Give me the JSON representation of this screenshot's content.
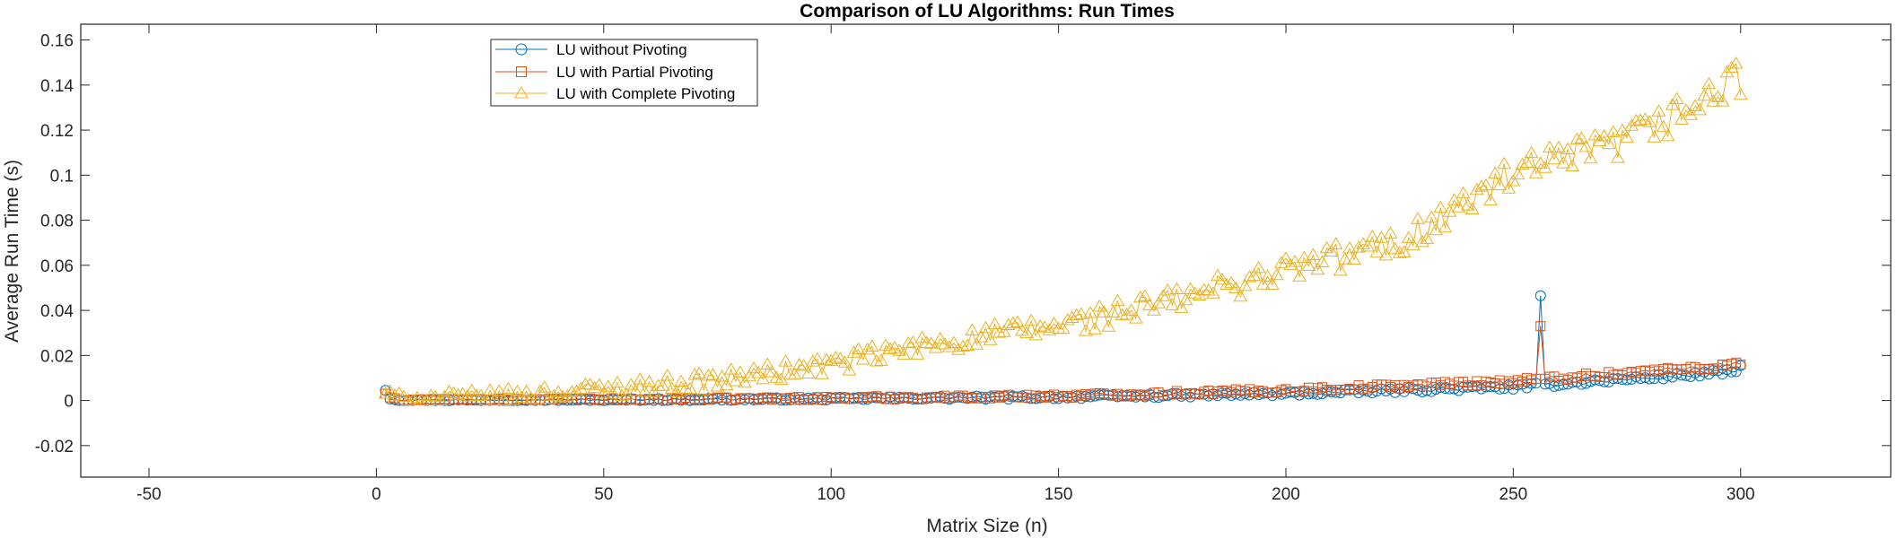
{
  "chart_data": {
    "type": "line",
    "title": "Comparison of LU Algorithms: Run Times",
    "xlabel": "Matrix Size (n)",
    "ylabel": "Average Run Time (s)",
    "xlim": [
      -65,
      333
    ],
    "ylim": [
      -0.034,
      0.167
    ],
    "xticks": [
      -50,
      0,
      50,
      100,
      150,
      200,
      250,
      300
    ],
    "xtick_labels": [
      "-50",
      "0",
      "50",
      "100",
      "150",
      "200",
      "250",
      "300"
    ],
    "yticks": [
      -0.02,
      0,
      0.02,
      0.04,
      0.06,
      0.08,
      0.1,
      0.12,
      0.14,
      0.16
    ],
    "ytick_labels": [
      "-0.02",
      "0",
      "0.02",
      "0.04",
      "0.06",
      "0.08",
      "0.1",
      "0.12",
      "0.14",
      "0.16"
    ],
    "grid": false,
    "legend_position": "top-left",
    "x": {
      "start": 2,
      "end": 300,
      "step": 1
    },
    "series": [
      {
        "name": "LU without Pivoting",
        "color": "#0072BD",
        "marker": "circle",
        "curve_knots": [
          [
            2,
            0.0045
          ],
          [
            3,
            0.001
          ],
          [
            5,
            0.0002
          ],
          [
            50,
            0.0003
          ],
          [
            100,
            0.0008
          ],
          [
            150,
            0.0015
          ],
          [
            200,
            0.003
          ],
          [
            250,
            0.006
          ],
          [
            300,
            0.013
          ]
        ],
        "noise": 0.0012,
        "overrides": [
          [
            2,
            0.0045
          ],
          [
            256,
            0.0465
          ],
          [
            300,
            0.0155
          ]
        ]
      },
      {
        "name": "LU with Partial Pivoting",
        "color": "#D95319",
        "marker": "square",
        "curve_knots": [
          [
            2,
            0.003
          ],
          [
            3,
            0.001
          ],
          [
            5,
            0.0003
          ],
          [
            50,
            0.0004
          ],
          [
            100,
            0.001
          ],
          [
            150,
            0.002
          ],
          [
            200,
            0.0045
          ],
          [
            250,
            0.0085
          ],
          [
            300,
            0.016
          ]
        ],
        "noise": 0.0014,
        "overrides": [
          [
            2,
            0.003
          ],
          [
            256,
            0.033
          ],
          [
            300,
            0.016
          ]
        ]
      },
      {
        "name": "LU with Complete Pivoting",
        "color": "#EDB120",
        "marker": "triangle",
        "curve_knots": [
          [
            2,
            0.003
          ],
          [
            5,
            0.0008
          ],
          [
            25,
            0.0015
          ],
          [
            50,
            0.005
          ],
          [
            75,
            0.009
          ],
          [
            100,
            0.016
          ],
          [
            125,
            0.026
          ],
          [
            150,
            0.033
          ],
          [
            175,
            0.044
          ],
          [
            200,
            0.058
          ],
          [
            225,
            0.07
          ],
          [
            250,
            0.1
          ],
          [
            275,
            0.115
          ],
          [
            300,
            0.142
          ]
        ],
        "noise": 0.0085,
        "overrides": [
          [
            2,
            0.003
          ],
          [
            299,
            0.1495
          ]
        ]
      }
    ]
  }
}
